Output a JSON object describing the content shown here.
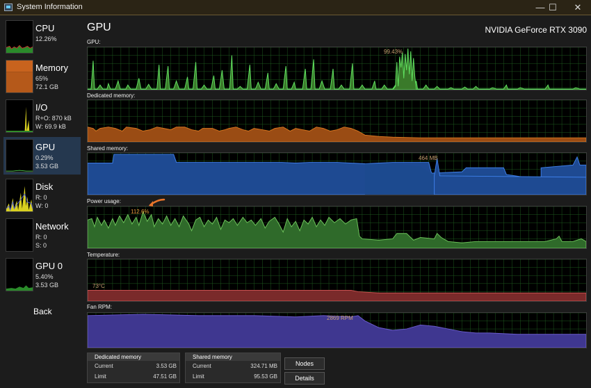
{
  "window": {
    "title": "System Information",
    "minimize": "—",
    "maximize": "☐",
    "close": "✕"
  },
  "sidebar": {
    "items": [
      {
        "name": "CPU",
        "line1": "12.26%",
        "line2": ""
      },
      {
        "name": "Memory",
        "line1": "65%",
        "line2": "72.1 GB"
      },
      {
        "name": "I/O",
        "line1": "R+O: 870 kB",
        "line2": "W: 69.9 kB"
      },
      {
        "name": "GPU",
        "line1": "0.29%",
        "line2": "3.53 GB"
      },
      {
        "name": "Disk",
        "line1": "R: 0",
        "line2": "W: 0"
      },
      {
        "name": "Network",
        "line1": "R: 0",
        "line2": "S: 0"
      },
      {
        "name": "GPU 0",
        "line1": "5.40%",
        "line2": "3.53 GB"
      }
    ],
    "back": "Back"
  },
  "main": {
    "title": "GPU",
    "device": "NVIDIA GeForce RTX 3090",
    "graphs": [
      {
        "label": "GPU:",
        "annotation": "99.43%"
      },
      {
        "label": "Dedicated memory:",
        "annotation": ""
      },
      {
        "label": "Shared memory:",
        "annotation": "464 MB"
      },
      {
        "label": "Power usage:",
        "annotation": "112.6%"
      },
      {
        "label": "Temperature:",
        "annotation": "73°C"
      },
      {
        "label": "Fan RPM:",
        "annotation": "2869 RPM"
      }
    ],
    "dedicated": {
      "header": "Dedicated memory",
      "current_label": "Current",
      "current": "3.53 GB",
      "limit_label": "Limit",
      "limit": "47.51 GB"
    },
    "shared": {
      "header": "Shared memory",
      "current_label": "Current",
      "current": "324.71 MB",
      "limit_label": "Limit",
      "limit": "95.53 GB"
    },
    "nodes_button": "Nodes",
    "details_button": "Details"
  },
  "colors": {
    "gpu": "#4fd14f",
    "dedicated": "#c9681e",
    "shared": "#2f6ad6",
    "power": "#6cc25a",
    "temperature": "#c8504f",
    "fan": "#6a5acd",
    "grid": "#1f5a1f",
    "selected": "#25384f"
  }
}
